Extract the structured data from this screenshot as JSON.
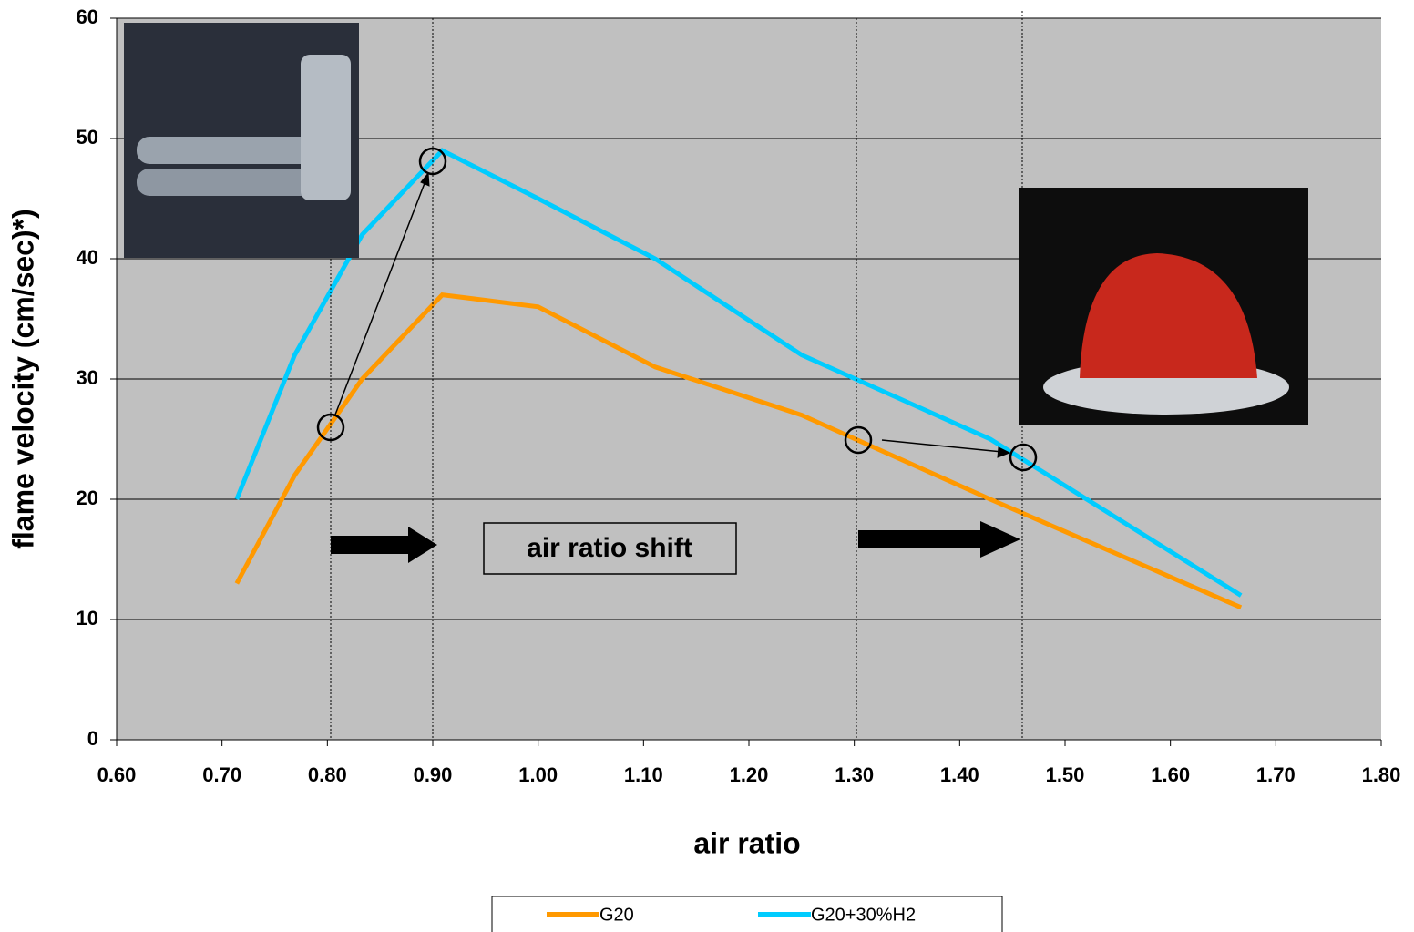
{
  "chart_data": {
    "type": "line",
    "x_label": "air ratio",
    "y_label": "flame velocity (cm/sec)*)",
    "annotation": "air ratio shift",
    "x": [
      0.714,
      0.769,
      0.833,
      0.909,
      1.0,
      1.111,
      1.25,
      1.429,
      1.667
    ],
    "series": [
      {
        "name": "G20",
        "color": "#ff9900",
        "values": [
          13,
          22,
          30,
          37,
          36,
          31,
          27,
          20,
          11
        ]
      },
      {
        "name": "G20+30%H2",
        "color": "#00ccff",
        "values": [
          20,
          32,
          42,
          49,
          45,
          40,
          32,
          25,
          12
        ]
      }
    ],
    "xlim": [
      0.6,
      1.8
    ],
    "xticks": [
      {
        "value": 0.6,
        "label": "0.60"
      },
      {
        "value": 0.7,
        "label": "0.70"
      },
      {
        "value": 0.8,
        "label": "0.80"
      },
      {
        "value": 0.9,
        "label": "0.90"
      },
      {
        "value": 1.0,
        "label": "1.00"
      },
      {
        "value": 1.1,
        "label": "1.10"
      },
      {
        "value": 1.2,
        "label": "1.20"
      },
      {
        "value": 1.3,
        "label": "1.30"
      },
      {
        "value": 1.4,
        "label": "1.40"
      },
      {
        "value": 1.5,
        "label": "1.50"
      },
      {
        "value": 1.6,
        "label": "1.60"
      },
      {
        "value": 1.7,
        "label": "1.70"
      },
      {
        "value": 1.8,
        "label": "1.80"
      }
    ],
    "ylim": [
      0,
      60
    ],
    "yticks": [
      0,
      10,
      20,
      30,
      40,
      50,
      60
    ],
    "grid": true,
    "legend": "bottom"
  }
}
